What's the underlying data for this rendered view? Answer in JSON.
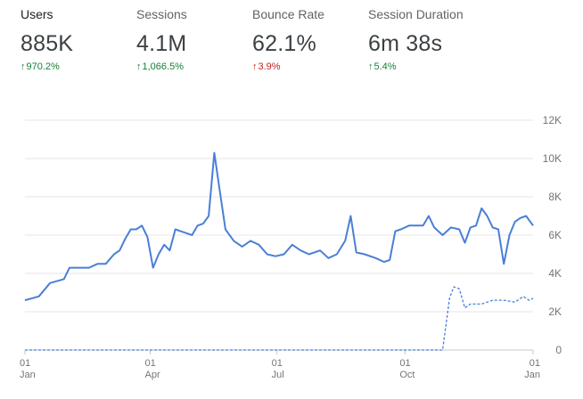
{
  "metrics": [
    {
      "label": "Users",
      "value": "885K",
      "change": "970.2%",
      "arrow": "↑",
      "trend": "good",
      "selected": true
    },
    {
      "label": "Sessions",
      "value": "4.1M",
      "change": "1,066.5%",
      "arrow": "↑",
      "trend": "good",
      "selected": false
    },
    {
      "label": "Bounce Rate",
      "value": "62.1%",
      "change": "3.9%",
      "arrow": "↑",
      "trend": "bad",
      "selected": false
    },
    {
      "label": "Session Duration",
      "value": "6m 38s",
      "change": "5.4%",
      "arrow": "↑",
      "trend": "good",
      "selected": false
    }
  ],
  "colors": {
    "line": "#4a7fd6",
    "grid": "#e6e6e6",
    "axis": "#9aa0a6",
    "good": "#188038",
    "bad": "#c5221f"
  },
  "chart_data": {
    "type": "line",
    "title": "",
    "xlabel": "",
    "ylabel": "",
    "ylim": [
      0,
      12000
    ],
    "y_ticks": [
      "0",
      "2K",
      "4K",
      "6K",
      "8K",
      "10K",
      "12K"
    ],
    "y_tick_values": [
      0,
      2000,
      4000,
      6000,
      8000,
      10000,
      12000
    ],
    "x_ticks": [
      {
        "day": "01",
        "month": "Jan",
        "index": 0
      },
      {
        "day": "01",
        "month": "Apr",
        "index": 90
      },
      {
        "day": "01",
        "month": "Jul",
        "index": 181
      },
      {
        "day": "01",
        "month": "Oct",
        "index": 273
      },
      {
        "day": "01",
        "month": "Jan",
        "index": 365
      }
    ],
    "grid": true,
    "series": [
      {
        "style": "solid",
        "points": [
          [
            0,
            2600
          ],
          [
            10,
            2800
          ],
          [
            18,
            3500
          ],
          [
            28,
            3700
          ],
          [
            32,
            4300
          ],
          [
            40,
            4300
          ],
          [
            46,
            4300
          ],
          [
            52,
            4500
          ],
          [
            58,
            4500
          ],
          [
            64,
            5000
          ],
          [
            68,
            5200
          ],
          [
            72,
            5800
          ],
          [
            76,
            6300
          ],
          [
            80,
            6300
          ],
          [
            84,
            6500
          ],
          [
            88,
            5900
          ],
          [
            92,
            4300
          ],
          [
            96,
            5000
          ],
          [
            100,
            5500
          ],
          [
            104,
            5200
          ],
          [
            108,
            6300
          ],
          [
            112,
            6200
          ],
          [
            116,
            6100
          ],
          [
            120,
            6000
          ],
          [
            124,
            6500
          ],
          [
            128,
            6600
          ],
          [
            132,
            7000
          ],
          [
            136,
            10300
          ],
          [
            140,
            8300
          ],
          [
            144,
            6300
          ],
          [
            150,
            5700
          ],
          [
            156,
            5400
          ],
          [
            162,
            5700
          ],
          [
            168,
            5500
          ],
          [
            174,
            5000
          ],
          [
            180,
            4900
          ],
          [
            186,
            5000
          ],
          [
            192,
            5500
          ],
          [
            198,
            5200
          ],
          [
            204,
            5000
          ],
          [
            212,
            5200
          ],
          [
            218,
            4800
          ],
          [
            224,
            5000
          ],
          [
            230,
            5700
          ],
          [
            234,
            7000
          ],
          [
            238,
            5100
          ],
          [
            244,
            5000
          ],
          [
            252,
            4800
          ],
          [
            258,
            4600
          ],
          [
            262,
            4700
          ],
          [
            266,
            6200
          ],
          [
            270,
            6300
          ],
          [
            276,
            6500
          ],
          [
            282,
            6500
          ],
          [
            286,
            6500
          ],
          [
            290,
            7000
          ],
          [
            294,
            6400
          ],
          [
            300,
            6000
          ],
          [
            306,
            6400
          ],
          [
            312,
            6300
          ],
          [
            316,
            5600
          ],
          [
            320,
            6400
          ],
          [
            324,
            6500
          ],
          [
            328,
            7400
          ],
          [
            332,
            7000
          ],
          [
            336,
            6400
          ],
          [
            340,
            6300
          ],
          [
            344,
            4500
          ],
          [
            348,
            6000
          ],
          [
            352,
            6700
          ],
          [
            356,
            6900
          ],
          [
            360,
            7000
          ],
          [
            365,
            6500
          ]
        ]
      },
      {
        "style": "dashed",
        "points": [
          [
            0,
            0
          ],
          [
            300,
            0
          ],
          [
            305,
            2700
          ],
          [
            308,
            3300
          ],
          [
            312,
            3200
          ],
          [
            316,
            2200
          ],
          [
            320,
            2400
          ],
          [
            328,
            2400
          ],
          [
            336,
            2600
          ],
          [
            344,
            2600
          ],
          [
            352,
            2500
          ],
          [
            358,
            2800
          ],
          [
            362,
            2600
          ],
          [
            365,
            2700
          ]
        ]
      }
    ]
  }
}
